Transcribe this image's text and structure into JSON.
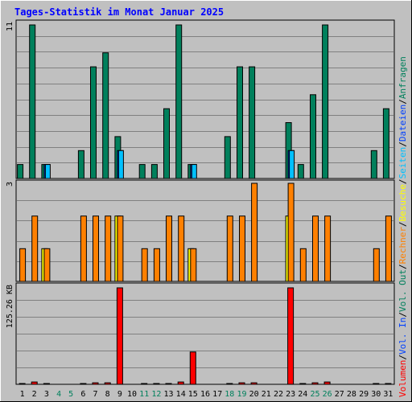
{
  "chart_data": {
    "type": "bar",
    "title": "Tages-Statistik im Monat Januar 2025",
    "days": [
      "1",
      "2",
      "3",
      "4",
      "5",
      "6",
      "7",
      "8",
      "9",
      "10",
      "11",
      "12",
      "13",
      "14",
      "15",
      "16",
      "17",
      "18",
      "19",
      "20",
      "21",
      "22",
      "23",
      "24",
      "25",
      "26",
      "27",
      "28",
      "29",
      "30",
      "31"
    ],
    "weekend_days": [
      "4",
      "5",
      "11",
      "12",
      "18",
      "19",
      "25",
      "26"
    ],
    "colors": {
      "background": "#c0c0c0",
      "title": "#0000ff",
      "hits": "#00805c",
      "files": "#0040ff",
      "pages": "#00c0ff",
      "visits": "#ffff00",
      "sites": "#ff8000",
      "kbytes": "#ff0000",
      "weekend_label": "#00805c"
    },
    "panels": [
      {
        "name": "hits-files-pages",
        "ymax": 11,
        "ymax_label": "11",
        "series": [
          {
            "name": "Anfragen",
            "values": [
              1,
              11,
              1,
              0,
              0,
              2,
              8,
              9,
              3,
              0,
              1,
              1,
              5,
              11,
              1,
              0,
              0,
              3,
              8,
              8,
              0,
              0,
              4,
              1,
              6,
              11,
              0,
              0,
              0,
              2,
              5
            ]
          },
          {
            "name": "Dateien",
            "values": [
              0,
              0,
              1,
              0,
              0,
              0,
              0,
              0,
              2,
              0,
              0,
              0,
              0,
              0,
              1,
              0,
              0,
              0,
              0,
              0,
              0,
              0,
              2,
              0,
              0,
              0,
              0,
              0,
              0,
              0,
              0
            ]
          },
          {
            "name": "Seiten",
            "values": [
              0,
              0,
              1,
              0,
              0,
              0,
              0,
              0,
              2,
              0,
              0,
              0,
              0,
              0,
              1,
              0,
              0,
              0,
              0,
              0,
              0,
              0,
              2,
              0,
              0,
              0,
              0,
              0,
              0,
              0,
              0
            ]
          }
        ]
      },
      {
        "name": "visits-sites",
        "ymax": 3,
        "ymax_label": "3",
        "series": [
          {
            "name": "Besuche",
            "values": [
              0,
              0,
              1,
              0,
              0,
              0,
              0,
              0,
              2,
              0,
              0,
              0,
              0,
              0,
              1,
              0,
              0,
              0,
              0,
              0,
              0,
              0,
              2,
              0,
              0,
              0,
              0,
              0,
              0,
              0,
              0
            ]
          },
          {
            "name": "Rechner",
            "values": [
              1,
              2,
              1,
              0,
              0,
              2,
              2,
              2,
              2,
              0,
              1,
              1,
              2,
              2,
              1,
              0,
              0,
              2,
              2,
              3,
              0,
              0,
              3,
              1,
              2,
              2,
              0,
              0,
              0,
              1,
              2
            ]
          }
        ]
      },
      {
        "name": "kbytes",
        "ymax": 125.26,
        "ymax_label": "125.26 KB",
        "series": [
          {
            "name": "Volumen",
            "values": [
              1,
              3,
              1,
              0,
              0,
              1,
              2,
              2,
              125.26,
              0,
              1,
              1,
              1,
              3,
              42,
              0,
              0,
              1,
              2,
              2,
              0,
              0,
              125.26,
              1,
              2,
              3,
              0,
              0,
              0,
              1,
              1
            ]
          }
        ]
      }
    ],
    "legend": [
      {
        "text": "Anfragen",
        "color": "#00805c"
      },
      {
        "text": "Dateien",
        "color": "#0040ff"
      },
      {
        "text": "Seiten",
        "color": "#00c0ff"
      },
      {
        "text": "Besuche",
        "color": "#ffff00"
      },
      {
        "text": "Rechner",
        "color": "#ff8000"
      },
      {
        "text": "Vol. Out",
        "color": "#00805c"
      },
      {
        "text": "Vol. In",
        "color": "#0040ff"
      },
      {
        "text": "Volumen",
        "color": "#ff0000"
      }
    ],
    "legend_separator": "/",
    "grid": true,
    "legend_placement": "right-vertical"
  }
}
